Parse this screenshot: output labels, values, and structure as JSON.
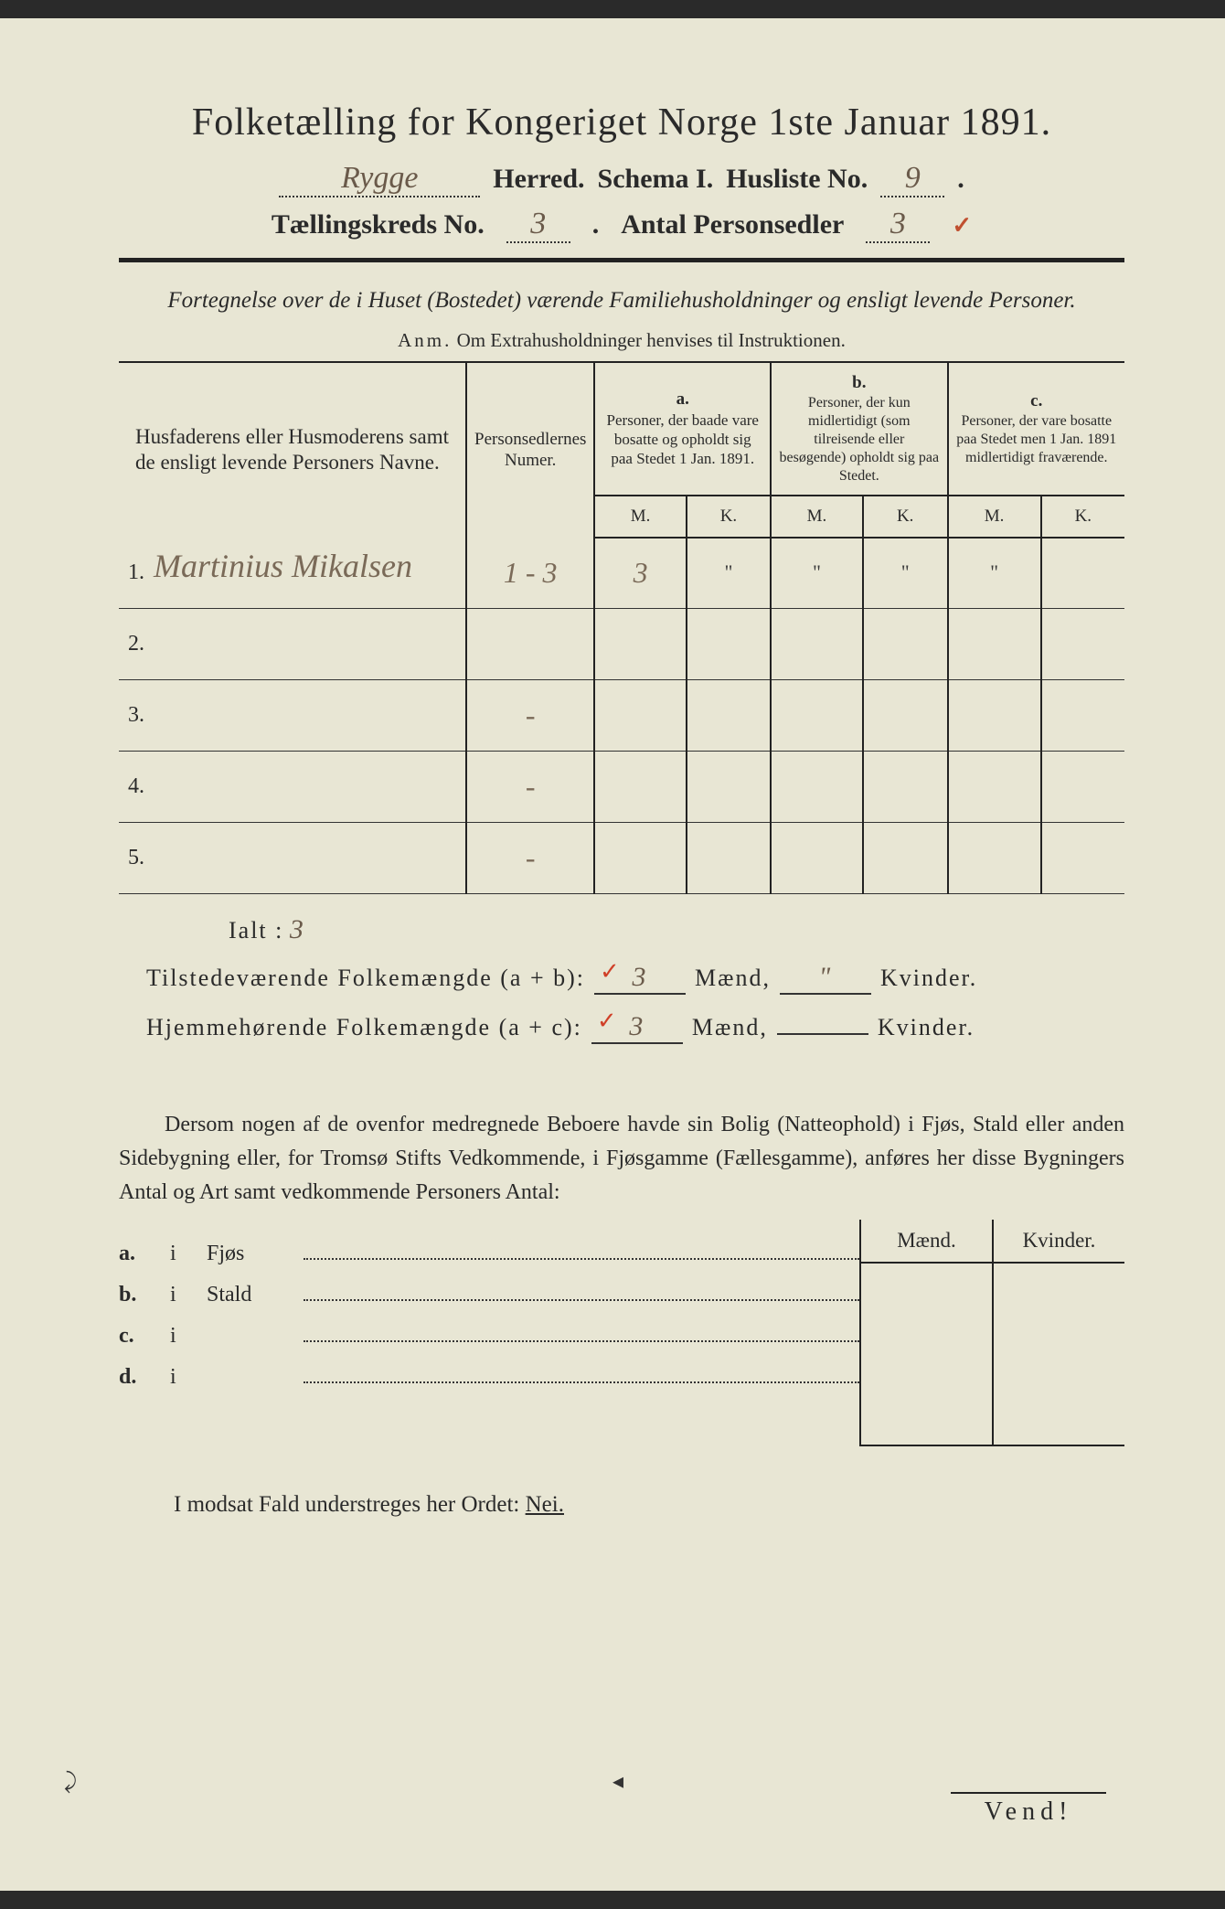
{
  "title": "Folketælling for Kongeriget Norge 1ste Januar 1891.",
  "header": {
    "herred_value": "Rygge",
    "herred_label": "Herred.",
    "schema_label": "Schema I.",
    "husliste_label": "Husliste No.",
    "husliste_value": "9",
    "kreds_label": "Tællingskreds No.",
    "kreds_value": "3",
    "personsedler_label": "Antal Personsedler",
    "personsedler_value": "3",
    "check": "✓"
  },
  "subtitle": "Fortegnelse over de i Huset (Bostedet) værende Familiehusholdninger og ensligt levende Personer.",
  "anm_lead": "Anm.",
  "anm_text": "Om Extrahusholdninger henvises til Instruktionen.",
  "table": {
    "col_names": "Husfaderens eller Husmoderens samt de ensligt levende Personers Navne.",
    "col_num": "Personsedlernes Numer.",
    "col_a_label": "a.",
    "col_a": "Personer, der baade vare bosatte og opholdt sig paa Stedet 1 Jan. 1891.",
    "col_b_label": "b.",
    "col_b": "Personer, der kun midlertidigt (som tilreisende eller besøgende) opholdt sig paa Stedet.",
    "col_c_label": "c.",
    "col_c": "Personer, der vare bosatte paa Stedet men 1 Jan. 1891 midlertidigt fraværende.",
    "m": "M.",
    "k": "K.",
    "rows": [
      {
        "n": "1.",
        "name": "Martinius Mikalsen",
        "num": "1 - 3",
        "a_m": "3",
        "a_k": "\"",
        "b_m": "\"",
        "b_k": "\"",
        "c_m": "\"",
        "c_k": ""
      },
      {
        "n": "2.",
        "name": "",
        "num": "",
        "a_m": "",
        "a_k": "",
        "b_m": "",
        "b_k": "",
        "c_m": "",
        "c_k": ""
      },
      {
        "n": "3.",
        "name": "",
        "num": "-",
        "a_m": "",
        "a_k": "",
        "b_m": "",
        "b_k": "",
        "c_m": "",
        "c_k": ""
      },
      {
        "n": "4.",
        "name": "",
        "num": "-",
        "a_m": "",
        "a_k": "",
        "b_m": "",
        "b_k": "",
        "c_m": "",
        "c_k": ""
      },
      {
        "n": "5.",
        "name": "",
        "num": "-",
        "a_m": "",
        "a_k": "",
        "b_m": "",
        "b_k": "",
        "c_m": "",
        "c_k": ""
      }
    ]
  },
  "ialt_label": "Ialt :",
  "ialt_value": "3",
  "sum1": {
    "label": "Tilstedeværende Folkemængde (a + b):",
    "maend": "3",
    "maend_label": "Mænd,",
    "kvinder": "\"",
    "kvinder_label": "Kvinder."
  },
  "sum2": {
    "label": "Hjemmehørende Folkemængde (a + c):",
    "maend": "3",
    "maend_label": "Mænd,",
    "kvinder": "",
    "kvinder_label": "Kvinder."
  },
  "para": "Dersom nogen af de ovenfor medregnede Beboere havde sin Bolig (Natteophold) i Fjøs, Stald eller anden Sidebygning eller, for Tromsø Stifts Vedkommende, i Fjøsgamme (Fællesgamme), anføres her disse Bygningers Antal og Art samt vedkommende Personers Antal:",
  "side": {
    "maend": "Mænd.",
    "kvinder": "Kvinder.",
    "rows": [
      {
        "lbl": "a.",
        "i": "i",
        "word": "Fjøs"
      },
      {
        "lbl": "b.",
        "i": "i",
        "word": "Stald"
      },
      {
        "lbl": "c.",
        "i": "i",
        "word": ""
      },
      {
        "lbl": "d.",
        "i": "i",
        "word": ""
      }
    ]
  },
  "modsat": "I modsat Fald understreges her Ordet:",
  "nei": "Nei.",
  "vend": "Vend!"
}
